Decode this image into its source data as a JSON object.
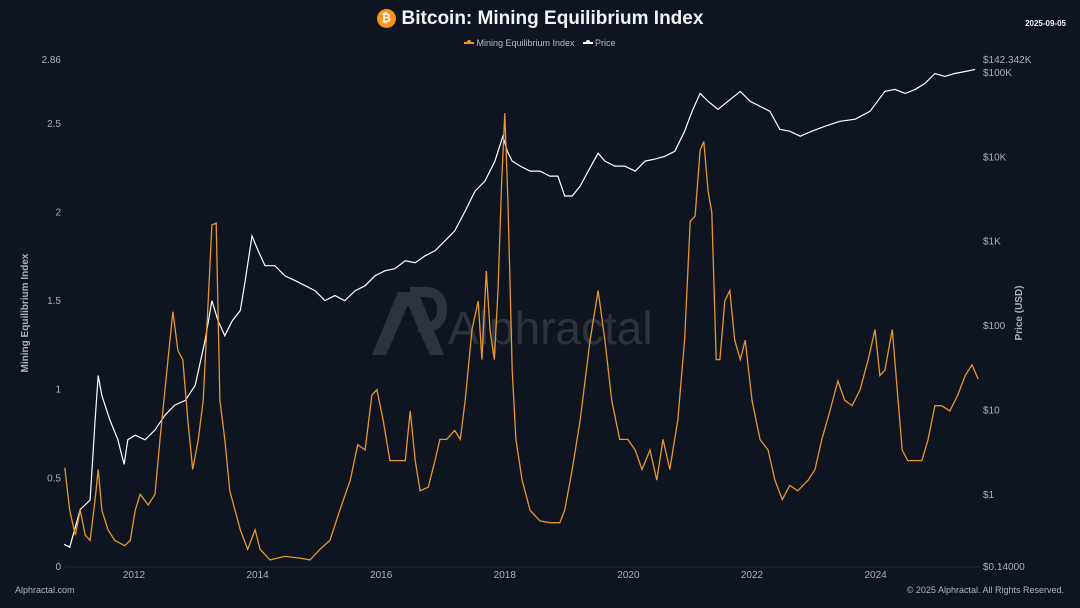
{
  "header": {
    "title": "Bitcoin: Mining Equilibrium Index",
    "coin_icon": "bitcoin-icon",
    "date": "2025-09-05"
  },
  "footer": {
    "left": "Alphractal.com",
    "right": "© 2025 Alphractal. All Rights Reserved."
  },
  "watermark": "Alphractal",
  "colors": {
    "background": "#0e1520",
    "mei": "#e8962e",
    "price": "#ffffff"
  },
  "chart_data": {
    "type": "line",
    "title": "Bitcoin: Mining Equilibrium Index",
    "legend": [
      "Mining Equilibrium Index",
      "Price"
    ],
    "legend_position": "top-center",
    "xlabel": "",
    "ylabel_left": "Mining Equilibrium Index",
    "ylabel_right": "Price (USD)",
    "x_ticks": [
      "2012",
      "2014",
      "2016",
      "2018",
      "2020",
      "2022",
      "2024"
    ],
    "x_tick_values": [
      2012,
      2014,
      2016,
      2018,
      2020,
      2022,
      2024
    ],
    "xlim": [
      2010.87,
      2025.7
    ],
    "ylim_left": [
      0,
      2.86
    ],
    "y_ticks_left": [
      "0",
      "0.5",
      "1",
      "1.5",
      "2",
      "2.5",
      "2.86"
    ],
    "y_tick_values_left": [
      0,
      0.5,
      1,
      1.5,
      2,
      2.5,
      2.86
    ],
    "ylim_right": [
      0.14,
      142342
    ],
    "y_scale_right": "log",
    "y_ticks_right": [
      "$0.14000",
      "$1",
      "$10",
      "$100",
      "$1K",
      "$10K",
      "$100K",
      "$142.342K"
    ],
    "y_tick_values_right": [
      0.14,
      1,
      10,
      100,
      1000,
      10000,
      100000,
      142342
    ],
    "grid": false,
    "series": [
      {
        "name": "Mining Equilibrium Index",
        "axis": "left",
        "points": [
          [
            2010.88,
            0.56
          ],
          [
            2010.96,
            0.32
          ],
          [
            2011.05,
            0.18
          ],
          [
            2011.13,
            0.32
          ],
          [
            2011.21,
            0.18
          ],
          [
            2011.29,
            0.15
          ],
          [
            2011.37,
            0.38
          ],
          [
            2011.42,
            0.55
          ],
          [
            2011.48,
            0.32
          ],
          [
            2011.58,
            0.21
          ],
          [
            2011.69,
            0.15
          ],
          [
            2011.85,
            0.12
          ],
          [
            2011.94,
            0.15
          ],
          [
            2012.02,
            0.32
          ],
          [
            2012.1,
            0.41
          ],
          [
            2012.23,
            0.35
          ],
          [
            2012.34,
            0.41
          ],
          [
            2012.42,
            0.72
          ],
          [
            2012.55,
            1.17
          ],
          [
            2012.63,
            1.44
          ],
          [
            2012.71,
            1.22
          ],
          [
            2012.79,
            1.17
          ],
          [
            2012.87,
            0.83
          ],
          [
            2012.95,
            0.55
          ],
          [
            2013.04,
            0.72
          ],
          [
            2013.12,
            0.94
          ],
          [
            2013.2,
            1.5
          ],
          [
            2013.26,
            1.93
          ],
          [
            2013.33,
            1.94
          ],
          [
            2013.39,
            0.94
          ],
          [
            2013.47,
            0.72
          ],
          [
            2013.55,
            0.43
          ],
          [
            2013.72,
            0.21
          ],
          [
            2013.84,
            0.1
          ],
          [
            2013.96,
            0.21
          ],
          [
            2014.04,
            0.1
          ],
          [
            2014.2,
            0.04
          ],
          [
            2014.44,
            0.06
          ],
          [
            2014.69,
            0.05
          ],
          [
            2014.85,
            0.04
          ],
          [
            2015.01,
            0.1
          ],
          [
            2015.17,
            0.15
          ],
          [
            2015.33,
            0.32
          ],
          [
            2015.5,
            0.49
          ],
          [
            2015.62,
            0.69
          ],
          [
            2015.74,
            0.66
          ],
          [
            2015.85,
            0.97
          ],
          [
            2015.93,
            1.0
          ],
          [
            2016.03,
            0.83
          ],
          [
            2016.14,
            0.6
          ],
          [
            2016.27,
            0.6
          ],
          [
            2016.39,
            0.6
          ],
          [
            2016.47,
            0.88
          ],
          [
            2016.55,
            0.6
          ],
          [
            2016.63,
            0.43
          ],
          [
            2016.76,
            0.45
          ],
          [
            2016.87,
            0.6
          ],
          [
            2016.95,
            0.72
          ],
          [
            2017.06,
            0.72
          ],
          [
            2017.19,
            0.77
          ],
          [
            2017.28,
            0.72
          ],
          [
            2017.36,
            0.94
          ],
          [
            2017.47,
            1.34
          ],
          [
            2017.57,
            1.5
          ],
          [
            2017.63,
            1.17
          ],
          [
            2017.7,
            1.67
          ],
          [
            2017.76,
            1.34
          ],
          [
            2017.83,
            1.17
          ],
          [
            2017.89,
            1.56
          ],
          [
            2017.95,
            2.18
          ],
          [
            2018.0,
            2.56
          ],
          [
            2018.05,
            2.07
          ],
          [
            2018.12,
            1.11
          ],
          [
            2018.18,
            0.72
          ],
          [
            2018.28,
            0.49
          ],
          [
            2018.41,
            0.32
          ],
          [
            2018.57,
            0.26
          ],
          [
            2018.73,
            0.25
          ],
          [
            2018.89,
            0.25
          ],
          [
            2018.97,
            0.32
          ],
          [
            2019.09,
            0.55
          ],
          [
            2019.22,
            0.83
          ],
          [
            2019.38,
            1.28
          ],
          [
            2019.51,
            1.56
          ],
          [
            2019.62,
            1.28
          ],
          [
            2019.73,
            0.94
          ],
          [
            2019.86,
            0.72
          ],
          [
            2019.99,
            0.72
          ],
          [
            2020.11,
            0.66
          ],
          [
            2020.22,
            0.55
          ],
          [
            2020.35,
            0.66
          ],
          [
            2020.46,
            0.49
          ],
          [
            2020.56,
            0.72
          ],
          [
            2020.67,
            0.55
          ],
          [
            2020.8,
            0.83
          ],
          [
            2020.91,
            1.28
          ],
          [
            2021.0,
            1.95
          ],
          [
            2021.08,
            1.98
          ],
          [
            2021.16,
            2.35
          ],
          [
            2021.22,
            2.4
          ],
          [
            2021.29,
            2.12
          ],
          [
            2021.35,
            2.0
          ],
          [
            2021.42,
            1.17
          ],
          [
            2021.48,
            1.17
          ],
          [
            2021.56,
            1.5
          ],
          [
            2021.64,
            1.56
          ],
          [
            2021.72,
            1.28
          ],
          [
            2021.81,
            1.17
          ],
          [
            2021.89,
            1.28
          ],
          [
            2022.0,
            0.94
          ],
          [
            2022.13,
            0.72
          ],
          [
            2022.26,
            0.66
          ],
          [
            2022.37,
            0.49
          ],
          [
            2022.49,
            0.38
          ],
          [
            2022.61,
            0.46
          ],
          [
            2022.74,
            0.43
          ],
          [
            2022.91,
            0.49
          ],
          [
            2023.02,
            0.55
          ],
          [
            2023.13,
            0.72
          ],
          [
            2023.26,
            0.88
          ],
          [
            2023.39,
            1.05
          ],
          [
            2023.5,
            0.94
          ],
          [
            2023.62,
            0.91
          ],
          [
            2023.75,
            1.0
          ],
          [
            2023.88,
            1.17
          ],
          [
            2023.99,
            1.34
          ],
          [
            2024.07,
            1.08
          ],
          [
            2024.15,
            1.11
          ],
          [
            2024.27,
            1.34
          ],
          [
            2024.35,
            1.0
          ],
          [
            2024.43,
            0.66
          ],
          [
            2024.52,
            0.6
          ],
          [
            2024.64,
            0.6
          ],
          [
            2024.75,
            0.6
          ],
          [
            2024.85,
            0.72
          ],
          [
            2024.96,
            0.91
          ],
          [
            2025.07,
            0.91
          ],
          [
            2025.2,
            0.88
          ],
          [
            2025.33,
            0.97
          ],
          [
            2025.45,
            1.08
          ],
          [
            2025.56,
            1.14
          ],
          [
            2025.66,
            1.06
          ]
        ]
      },
      {
        "name": "Price",
        "axis": "right",
        "points": [
          [
            2010.87,
            0.26
          ],
          [
            2010.96,
            0.24
          ],
          [
            2011.13,
            0.67
          ],
          [
            2011.29,
            0.87
          ],
          [
            2011.37,
            7.7
          ],
          [
            2011.42,
            26
          ],
          [
            2011.48,
            15
          ],
          [
            2011.61,
            7.7
          ],
          [
            2011.74,
            4.5
          ],
          [
            2011.84,
            2.3
          ],
          [
            2011.9,
            4.5
          ],
          [
            2012.02,
            5.1
          ],
          [
            2012.18,
            4.5
          ],
          [
            2012.34,
            5.9
          ],
          [
            2012.5,
            8.8
          ],
          [
            2012.66,
            11.6
          ],
          [
            2012.83,
            13.2
          ],
          [
            2012.99,
            19.9
          ],
          [
            2013.15,
            68
          ],
          [
            2013.26,
            200
          ],
          [
            2013.36,
            116
          ],
          [
            2013.47,
            77
          ],
          [
            2013.59,
            116
          ],
          [
            2013.72,
            153
          ],
          [
            2013.8,
            345
          ],
          [
            2013.91,
            1170
          ],
          [
            2014.01,
            780
          ],
          [
            2014.12,
            520
          ],
          [
            2014.28,
            520
          ],
          [
            2014.44,
            395
          ],
          [
            2014.61,
            345
          ],
          [
            2014.77,
            301
          ],
          [
            2014.93,
            263
          ],
          [
            2015.09,
            200
          ],
          [
            2015.25,
            230
          ],
          [
            2015.41,
            200
          ],
          [
            2015.58,
            263
          ],
          [
            2015.74,
            301
          ],
          [
            2015.9,
            395
          ],
          [
            2016.06,
            453
          ],
          [
            2016.22,
            479
          ],
          [
            2016.39,
            595
          ],
          [
            2016.55,
            564
          ],
          [
            2016.71,
            682
          ],
          [
            2016.87,
            780
          ],
          [
            2017.03,
            1024
          ],
          [
            2017.19,
            1345
          ],
          [
            2017.36,
            2315
          ],
          [
            2017.52,
            3990
          ],
          [
            2017.68,
            5240
          ],
          [
            2017.84,
            9020
          ],
          [
            2017.97,
            17800
          ],
          [
            2018.04,
            11800
          ],
          [
            2018.12,
            9020
          ],
          [
            2018.25,
            7880
          ],
          [
            2018.41,
            6870
          ],
          [
            2018.57,
            6870
          ],
          [
            2018.73,
            6000
          ],
          [
            2018.86,
            6000
          ],
          [
            2018.97,
            3480
          ],
          [
            2019.09,
            3480
          ],
          [
            2019.22,
            4570
          ],
          [
            2019.35,
            6870
          ],
          [
            2019.51,
            11200
          ],
          [
            2019.62,
            9020
          ],
          [
            2019.78,
            7880
          ],
          [
            2019.94,
            7880
          ],
          [
            2020.11,
            6870
          ],
          [
            2020.27,
            9020
          ],
          [
            2020.43,
            9520
          ],
          [
            2020.59,
            10300
          ],
          [
            2020.75,
            11800
          ],
          [
            2020.91,
            20400
          ],
          [
            2021.03,
            35100
          ],
          [
            2021.16,
            57300
          ],
          [
            2021.29,
            46100
          ],
          [
            2021.45,
            37100
          ],
          [
            2021.61,
            46100
          ],
          [
            2021.81,
            60500
          ],
          [
            2021.97,
            46100
          ],
          [
            2022.13,
            40200
          ],
          [
            2022.29,
            35100
          ],
          [
            2022.45,
            21500
          ],
          [
            2022.61,
            20400
          ],
          [
            2022.78,
            17800
          ],
          [
            2022.97,
            20400
          ],
          [
            2023.18,
            23300
          ],
          [
            2023.42,
            26700
          ],
          [
            2023.67,
            28300
          ],
          [
            2023.91,
            35100
          ],
          [
            2024.15,
            60500
          ],
          [
            2024.31,
            63900
          ],
          [
            2024.48,
            57300
          ],
          [
            2024.64,
            63900
          ],
          [
            2024.8,
            75100
          ],
          [
            2024.96,
            98600
          ],
          [
            2025.12,
            91000
          ],
          [
            2025.28,
            98600
          ],
          [
            2025.45,
            104000
          ],
          [
            2025.61,
            110000
          ]
        ]
      }
    ]
  }
}
